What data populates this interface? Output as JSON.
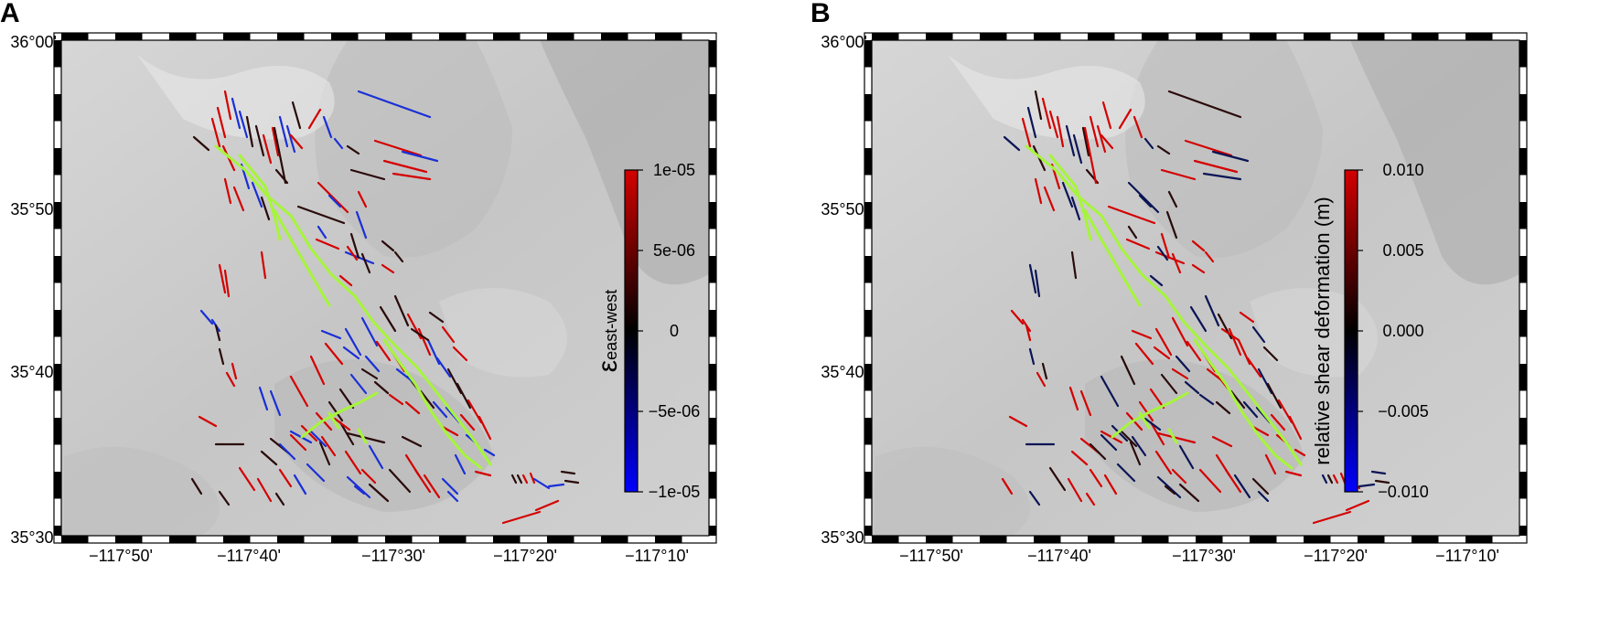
{
  "panels": [
    {
      "label": "A",
      "lat_ticks": [
        "36°00'",
        "35°50'",
        "35°40'",
        "35°30'"
      ],
      "lon_ticks": [
        "−117°50'",
        "−117°40'",
        "−117°30'",
        "−117°20'",
        "−117°10'"
      ],
      "colorbar": {
        "title_symbol": "ε",
        "title_subscript": "east-west",
        "ticks": [
          "1e-05",
          "5e-06",
          "0",
          "−5e-06",
          "−1e-05"
        ],
        "values": [
          1e-05,
          5e-06,
          0,
          -5e-06,
          -1e-05
        ],
        "colors": {
          "top": "#d40000",
          "mid": "#000000",
          "bottom": "#0000ff"
        }
      }
    },
    {
      "label": "B",
      "lat_ticks": [
        "36°00'",
        "35°50'",
        "35°40'",
        "35°30'"
      ],
      "lon_ticks": [
        "−117°50'",
        "−117°40'",
        "−117°30'",
        "−117°20'",
        "−117°10'"
      ],
      "colorbar": {
        "title": "relative shear deformation (m)",
        "ticks": [
          "0.010",
          "0.005",
          "0.000",
          "−0.005",
          "−0.010"
        ],
        "values": [
          0.01,
          0.005,
          0,
          -0.005,
          -0.01
        ],
        "colors": {
          "top": "#d40000",
          "mid": "#000000",
          "bottom": "#0000ff"
        }
      }
    }
  ],
  "colors": {
    "rupture": "#a6f53a",
    "positive": "#d40000",
    "negative": "#1a2fd6",
    "neutral": "#2a0a0a",
    "dark_blue": "#0a1455"
  }
}
